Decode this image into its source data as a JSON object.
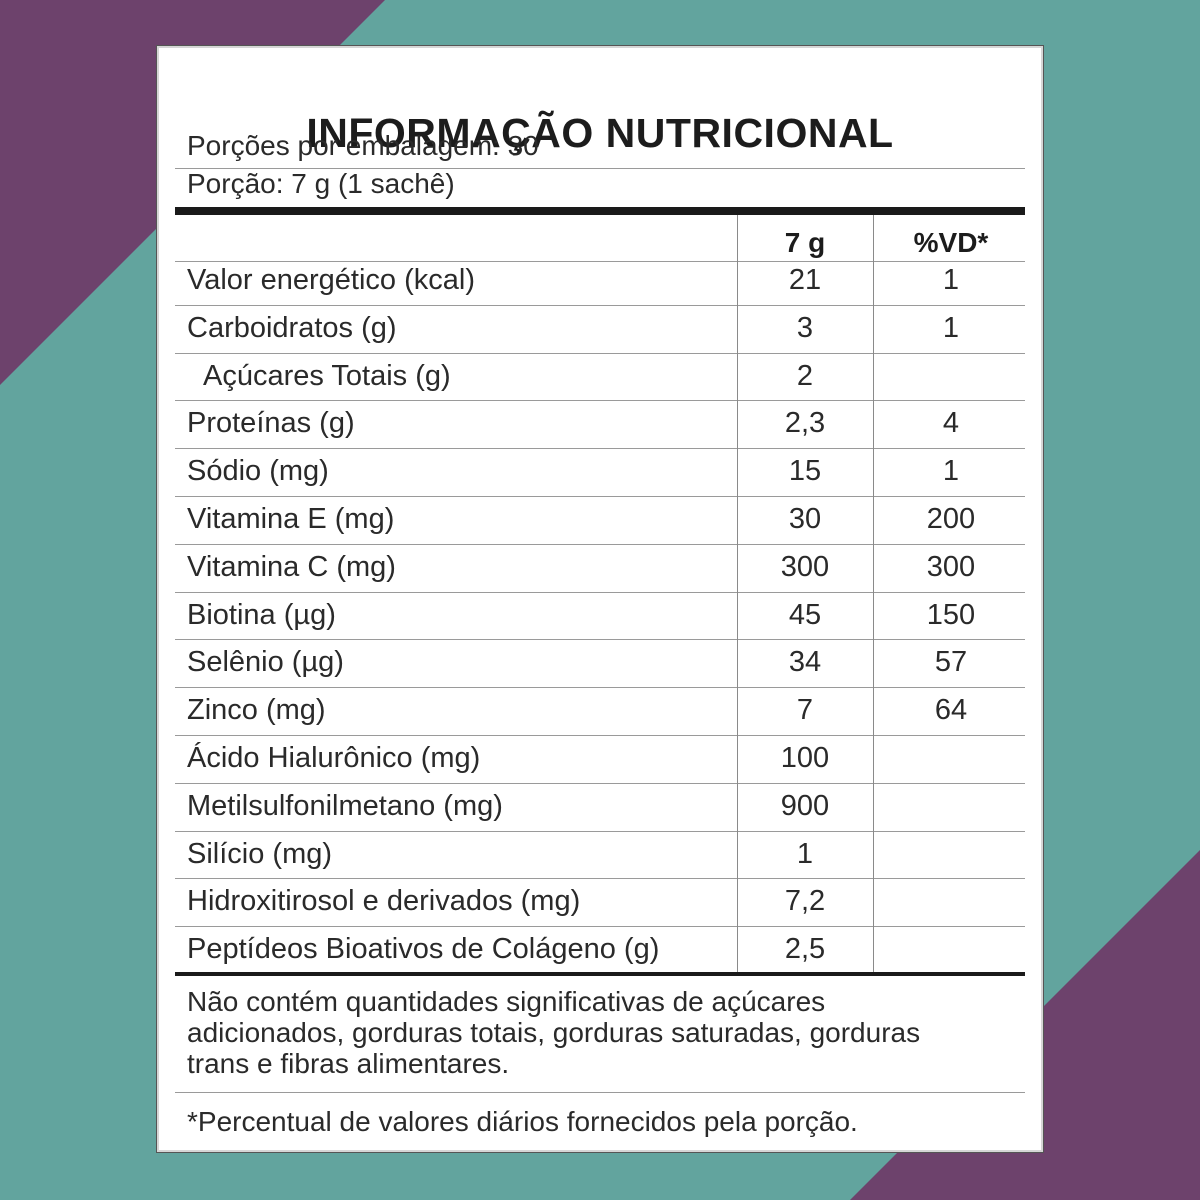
{
  "colors": {
    "teal": "#62a49e",
    "purple": "#6d426c"
  },
  "label": {
    "title": "INFORMAÇÃO NUTRICIONAL",
    "servings_per_package": "Porções por embalagem: 30",
    "serving_size": "Porção: 7 g (1 sachê)",
    "columns": {
      "amount": "7 g",
      "dv": "%VD*"
    },
    "rows": [
      {
        "name": "Valor energético (kcal)",
        "amount": "21",
        "dv": "1"
      },
      {
        "name": "Carboidratos (g)",
        "amount": "3",
        "dv": "1"
      },
      {
        "name": "Açúcares Totais (g)",
        "amount": "2",
        "dv": ""
      },
      {
        "name": "Proteínas (g)",
        "amount": "2,3",
        "dv": "4"
      },
      {
        "name": "Sódio (mg)",
        "amount": "15",
        "dv": "1"
      },
      {
        "name": "Vitamina E (mg)",
        "amount": "30",
        "dv": "200"
      },
      {
        "name": "Vitamina C (mg)",
        "amount": "300",
        "dv": "300"
      },
      {
        "name": "Biotina (µg)",
        "amount": "45",
        "dv": "150"
      },
      {
        "name": "Selênio (µg)",
        "amount": "34",
        "dv": "57"
      },
      {
        "name": "Zinco (mg)",
        "amount": "7",
        "dv": "64"
      },
      {
        "name": "Ácido Hialurônico (mg)",
        "amount": "100",
        "dv": ""
      },
      {
        "name": "Metilsulfonilmetano (mg)",
        "amount": "900",
        "dv": ""
      },
      {
        "name": "Silício (mg)",
        "amount": "1",
        "dv": ""
      },
      {
        "name": "Hidroxitirosol e derivados (mg)",
        "amount": "7,2",
        "dv": ""
      },
      {
        "name": "Peptídeos Bioativos de Colágeno (g)",
        "amount": "2,5",
        "dv": ""
      }
    ],
    "note_line1": "Não contém quantidades significativas de açúcares",
    "note_line2": "adicionados, gorduras totais, gorduras saturadas, gorduras",
    "note_line3": "trans e fibras alimentares.",
    "footnote": "*Percentual de valores diários fornecidos pela porção."
  }
}
